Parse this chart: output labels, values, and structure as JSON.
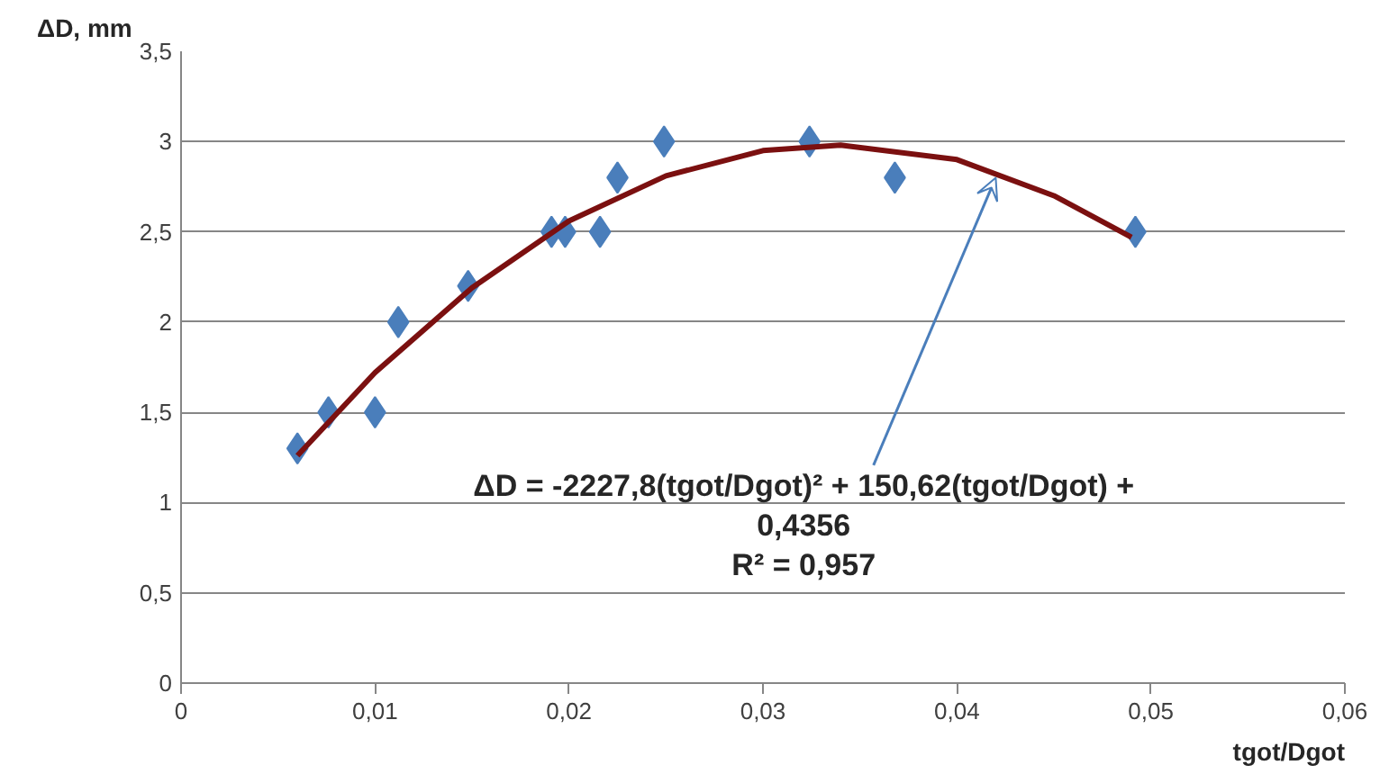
{
  "chart_data": {
    "type": "scatter",
    "xlabel": "tgot/Dgot",
    "ylabel": "ΔD, mm",
    "xlim": [
      0,
      0.06
    ],
    "xticks": [
      {
        "value": 0,
        "label": "0"
      },
      {
        "value": 0.01,
        "label": "0,01"
      },
      {
        "value": 0.02,
        "label": "0,02"
      },
      {
        "value": 0.03,
        "label": "0,03"
      },
      {
        "value": 0.04,
        "label": "0,04"
      },
      {
        "value": 0.05,
        "label": "0,05"
      },
      {
        "value": 0.06,
        "label": "0,06"
      }
    ],
    "ylim": [
      0,
      3.5
    ],
    "yticks": [
      {
        "value": 0,
        "label": "0"
      },
      {
        "value": 0.5,
        "label": "0,5"
      },
      {
        "value": 1,
        "label": "1"
      },
      {
        "value": 1.5,
        "label": "1,5"
      },
      {
        "value": 2,
        "label": "2"
      },
      {
        "value": 2.5,
        "label": "2,5"
      },
      {
        "value": 3,
        "label": "3"
      },
      {
        "value": 3.5,
        "label": "3,5"
      }
    ],
    "grid": "y",
    "series": [
      {
        "marker": "diamond",
        "color": "#4a7ebb",
        "x": [
          0.006,
          0.0076,
          0.01,
          0.0112,
          0.0148,
          0.0191,
          0.0198,
          0.0216,
          0.0225,
          0.0249,
          0.0324,
          0.0368,
          0.0492
        ],
        "values": [
          1.3,
          1.5,
          1.5,
          2.0,
          2.2,
          2.5,
          2.5,
          2.5,
          2.8,
          3.0,
          3.0,
          2.8,
          2.5
        ]
      },
      {
        "type": "line",
        "color": "#7b1010",
        "x": [
          0.006,
          0.01,
          0.015,
          0.02,
          0.025,
          0.03,
          0.034,
          0.04,
          0.045,
          0.049
        ],
        "values": [
          1.26,
          1.72,
          2.19,
          2.56,
          2.81,
          2.95,
          2.98,
          2.9,
          2.7,
          2.47
        ]
      }
    ],
    "annotations": [
      {
        "text": "ΔD = -2227,8(tgot/Dgot)² + 150,62(tgot/Dgot) +\n0,4356\nR² = 0,957",
        "x": 0.042,
        "y": 2.8
      }
    ]
  }
}
